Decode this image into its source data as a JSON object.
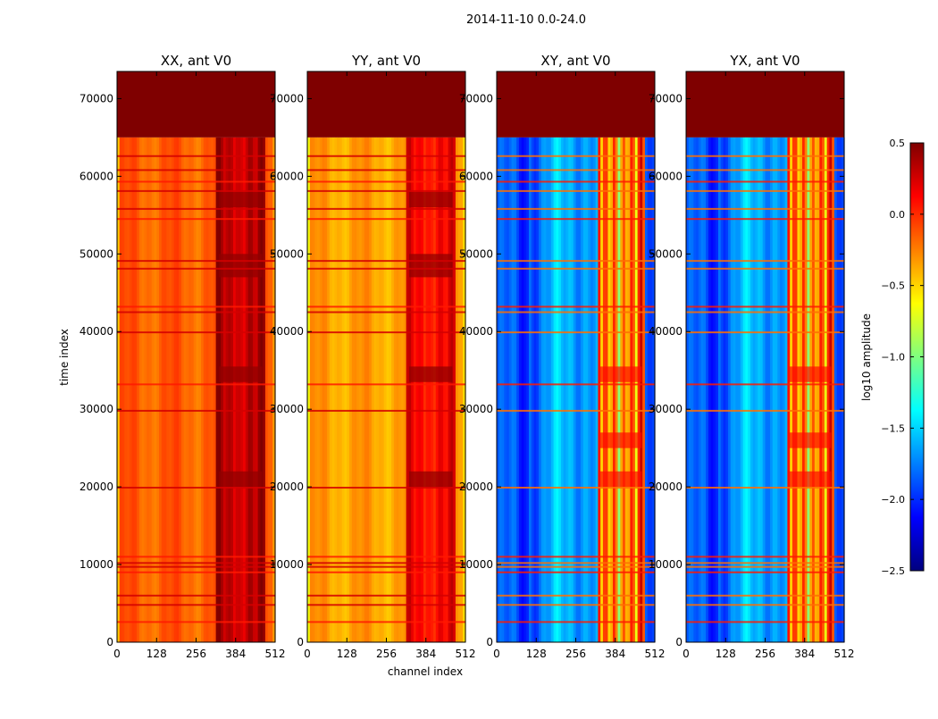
{
  "figure_title": "2014-11-10 0.0-24.0",
  "colors": {
    "header_band": "#7f0000",
    "frame": "#000000",
    "jet": [
      "#00007f",
      "#0000ff",
      "#007fff",
      "#00ffff",
      "#7fff7f",
      "#ffff00",
      "#ff7f00",
      "#ff0000",
      "#7f0000"
    ]
  },
  "chart_data": {
    "type": "heatmap",
    "colormap": "jet",
    "xlabel": "channel index",
    "ylabel": "time index",
    "xlim": [
      0,
      512
    ],
    "ylim": [
      0,
      73500
    ],
    "xticks": [
      0,
      128,
      256,
      384,
      512
    ],
    "yticks": [
      0,
      10000,
      20000,
      30000,
      40000,
      50000,
      60000,
      70000
    ],
    "masked_above_time": 65000,
    "panels": [
      {
        "title": "XX, ant V0",
        "kind": "auto",
        "base_log_amplitude": -0.15
      },
      {
        "title": "YY, ant V0",
        "kind": "auto",
        "base_log_amplitude": -0.35
      },
      {
        "title": "XY, ant V0",
        "kind": "cross",
        "base_log_amplitude": -1.95
      },
      {
        "title": "YX, ant V0",
        "kind": "cross",
        "base_log_amplitude": -1.95
      }
    ],
    "horizontal_bands_time": [
      2600,
      4800,
      6000,
      9000,
      9700,
      10200,
      11000,
      19900,
      29800,
      33200,
      39900,
      42500,
      43200,
      48100,
      49100,
      54500,
      55800,
      58100,
      59300,
      60800,
      62600
    ],
    "colorbar": {
      "label": "log10 amplitude",
      "range": [
        -2.5,
        0.5
      ],
      "ticks": [
        0.5,
        0.0,
        -0.5,
        -1.0,
        -1.5,
        -2.0,
        -2.5
      ],
      "tick_labels": [
        "0.5",
        "0.0",
        "−0.5",
        "−1.0",
        "−1.5",
        "−2.0",
        "−2.5"
      ]
    }
  }
}
